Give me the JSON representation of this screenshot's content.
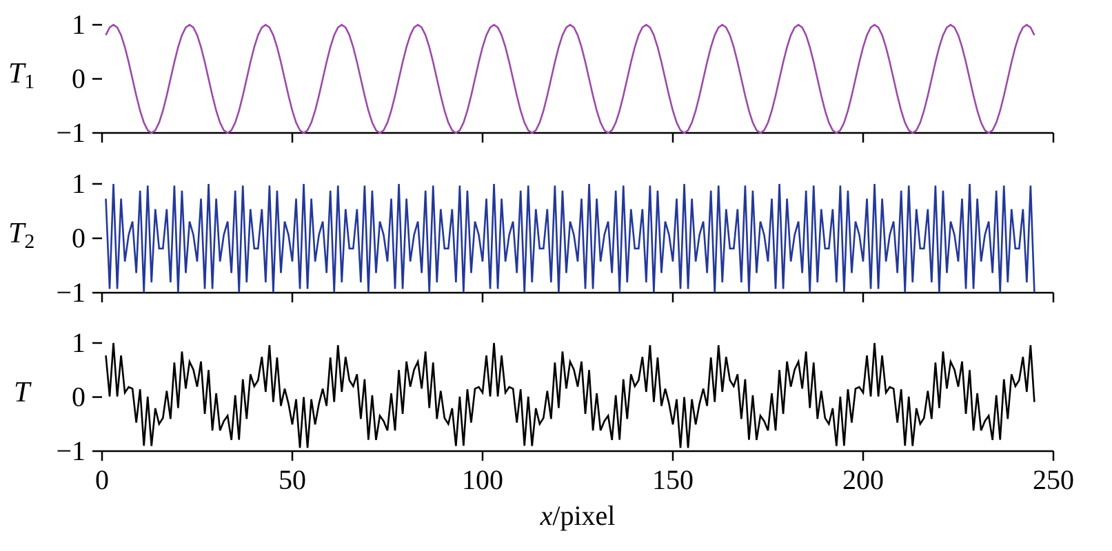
{
  "chart_data": {
    "type": "line",
    "xlabel": {
      "var": "x",
      "unit": "/pixel"
    },
    "xlim": [
      0,
      250
    ],
    "xticks": [
      0,
      50,
      100,
      150,
      200,
      250
    ],
    "x_start": 1,
    "x_end": 245,
    "panels": [
      {
        "id": "T1",
        "label_main": "T",
        "label_sub": "1",
        "color": "#9b4aa8",
        "ylim": [
          -1,
          1
        ],
        "yticks": [
          -1,
          0,
          1
        ],
        "formula": "cos(2*pi*(x - 3)/20)"
      },
      {
        "id": "T2",
        "label_main": "T",
        "label_sub": "2",
        "color": "#23389a",
        "ylim": [
          -1,
          1
        ],
        "yticks": [
          -1,
          0,
          1
        ],
        "formula": "cos(2*pi*0.44*(x - 3))"
      },
      {
        "id": "T",
        "label_main": "T",
        "label_sub": "",
        "color": "#000000",
        "ylim": [
          -1,
          1
        ],
        "yticks": [
          -1,
          0,
          1
        ],
        "formula": "(T1 + T2) / 2"
      }
    ]
  }
}
